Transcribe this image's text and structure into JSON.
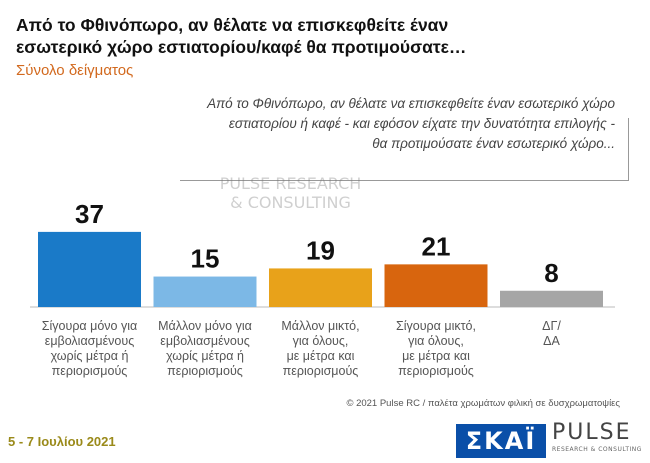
{
  "title_lines": [
    "Από το Φθινόπωρο, αν θέλατε να επισκεφθείτε έναν",
    "εσωτερικό χώρο εστιατορίου/καφέ θα προτιμούσατε…"
  ],
  "subtitle": "Σύνολο δείγματος",
  "question_lines": [
    "Από το Φθινόπωρο, αν θέλατε να επισκεφθείτε έναν εσωτερικό χώρο",
    "εστιατορίου ή καφέ - και εφόσον είχατε την δυνατότητα επιλογής -",
    "θα προτιμούσατε έναν εσωτερικό χώρο..."
  ],
  "chart_data": {
    "type": "bar",
    "categories": [
      [
        "Σίγουρα μόνο για",
        "εμβολιασμένους",
        "χωρίς μέτρα ή",
        "περιορισμούς"
      ],
      [
        "Μάλλον μόνο για",
        "εμβολιασμένους",
        "χωρίς μέτρα ή",
        "περιορισμούς"
      ],
      [
        "Μάλλον μικτό,",
        "για όλους,",
        "με μέτρα και",
        "περιορισμούς"
      ],
      [
        "Σίγουρα μικτό,",
        "για όλους,",
        "με μέτρα και",
        "περιορισμούς"
      ],
      [
        "ΔΓ/",
        "ΔΑ"
      ]
    ],
    "values": [
      37,
      15,
      19,
      21,
      8
    ],
    "colors": [
      "#1a7ac8",
      "#7cb8e6",
      "#e8a21a",
      "#d8650e",
      "#a6a6a6"
    ],
    "ylim": [
      0,
      40
    ]
  },
  "footer_note": "© 2021 Pulse RC  /  παλέτα χρωμάτων φιλική σε δυσχρωματοψίες",
  "date": "5 - 7  Ιουλίου  2021",
  "logos": {
    "skai": "ΣΚΑΪ",
    "pulse": "PULSE",
    "pulse_sub": "RESEARCH & CONSULTING"
  }
}
